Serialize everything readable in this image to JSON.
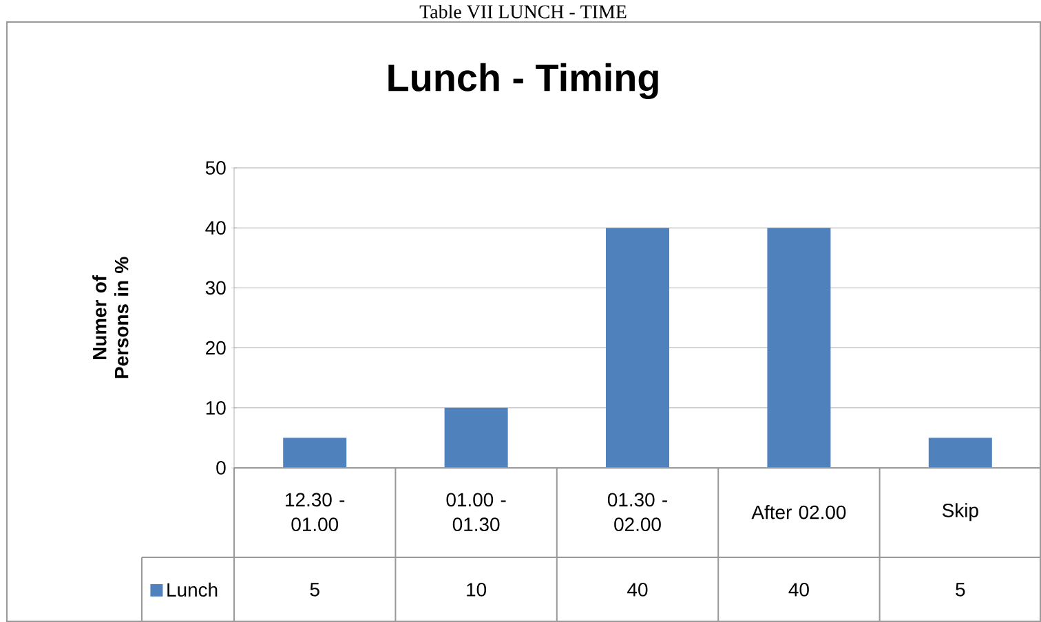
{
  "chart_data": {
    "type": "bar",
    "title": "Lunch - Timing",
    "ylabel": "Numer of Persons in %",
    "annotations": [
      "Table VII LUNCH - TIME"
    ],
    "categories": [
      "12.30 - 01.00",
      "01.00 - 01.30",
      "01.30 - 02.00",
      "After 02.00",
      "Skip"
    ],
    "series": [
      {
        "name": "Lunch",
        "color": "#4f81bd",
        "values": [
          5,
          10,
          40,
          40,
          5
        ]
      }
    ],
    "ylim": [
      0,
      50
    ],
    "yticks": [
      0,
      10,
      20,
      30,
      40,
      50
    ],
    "grid": "y",
    "legend": "bottom",
    "data_labels": true
  }
}
